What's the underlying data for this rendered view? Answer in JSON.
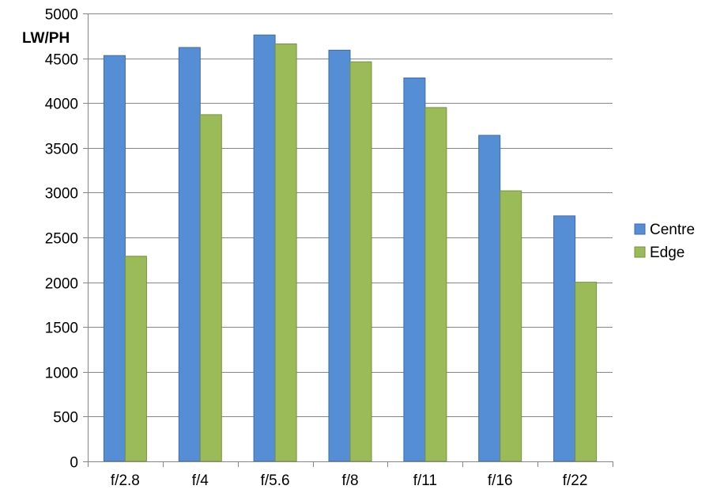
{
  "chart_data": {
    "type": "bar",
    "title": "",
    "xlabel": "",
    "ylabel": "LW/PH",
    "ylim": [
      0,
      5000
    ],
    "ytick_step": 500,
    "grid": true,
    "legend_position": "right",
    "categories": [
      "f/2.8",
      "f/4",
      "f/5.6",
      "f/8",
      "f/11",
      "f/16",
      "f/22"
    ],
    "series": [
      {
        "name": "Centre",
        "color": "#558ED5",
        "stroke": "#3E6CA8",
        "values": [
          4530,
          4620,
          4760,
          4590,
          4280,
          3640,
          2740
        ]
      },
      {
        "name": "Edge",
        "color": "#9BBB59",
        "stroke": "#76923C",
        "values": [
          2290,
          3870,
          4660,
          4460,
          3950,
          3020,
          2000
        ]
      }
    ]
  }
}
